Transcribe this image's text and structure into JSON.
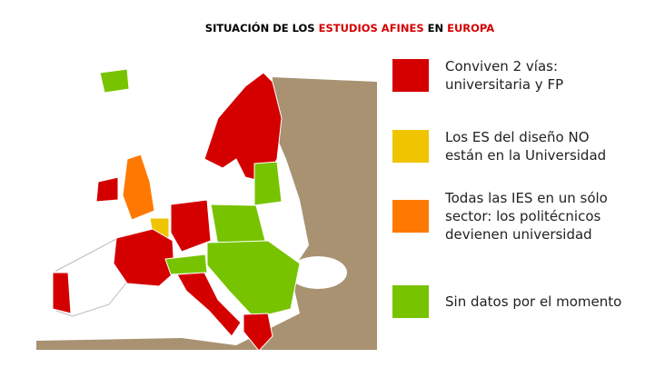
{
  "title": {
    "parts": [
      {
        "text": "SITUACIÓN DE LOS ",
        "color": "#000000"
      },
      {
        "text": "ESTUDIOS AFINES",
        "color": "#d40000"
      },
      {
        "text": " EN ",
        "color": "#000000"
      },
      {
        "text": "EUROPA",
        "color": "#d40000"
      }
    ]
  },
  "legend": [
    {
      "color": "#d40000",
      "lines": [
        "Conviven 2 vías:",
        "universitaria y FP"
      ]
    },
    {
      "color": "#f0c400",
      "lines": [
        "Los ES del diseño NO",
        "están en la Universidad"
      ]
    },
    {
      "color": "#ff7800",
      "lines": [
        "Todas las IES en un sólo",
        "sector: los politécnicos",
        "devienen universidad"
      ]
    },
    {
      "color": "#77c300",
      "lines": [
        "Sin datos por el momento"
      ]
    }
  ]
}
